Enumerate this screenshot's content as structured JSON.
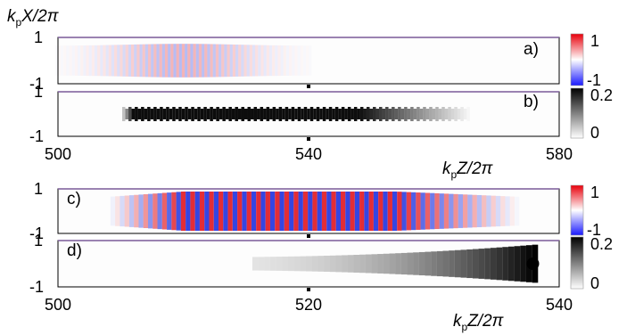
{
  "figure": {
    "ylabel": {
      "base": "k",
      "sub": "p",
      "tail": "X/2π"
    },
    "xlabel": {
      "base": "k",
      "sub": "p",
      "tail": "Z/2π"
    }
  },
  "chart_data": [
    {
      "type": "heatmap",
      "panel_label": "a)",
      "quantity": "oscillating field",
      "xlim": [
        500,
        580
      ],
      "ylim": [
        -1,
        1
      ],
      "yticks": [
        "1",
        "-1"
      ],
      "xticks": [],
      "colormap": "blue-white-red",
      "colorbar_ticks": [
        "1",
        "-1"
      ],
      "colorbar_range": [
        -1,
        1
      ],
      "envelope": {
        "center": 520,
        "half_width": 12,
        "amplitude": 0.35,
        "period": 0.9
      },
      "marker_x": 540
    },
    {
      "type": "heatmap",
      "panel_label": "b)",
      "quantity": "intensity",
      "xlim": [
        500,
        580
      ],
      "ylim": [
        -1,
        1
      ],
      "yticks": [
        "1",
        "-1"
      ],
      "xticks": [
        "500",
        "540",
        "580"
      ],
      "colormap": "white-black",
      "colorbar_ticks": [
        "0.2",
        "0"
      ],
      "colorbar_range": [
        0,
        0.2
      ],
      "envelope": {
        "start": 510,
        "peak_start": 512,
        "peak_end": 548,
        "end": 566,
        "period": 1.0
      },
      "marker_x": 540
    },
    {
      "type": "heatmap",
      "panel_label": "c)",
      "quantity": "oscillating field",
      "xlim": [
        500,
        540
      ],
      "ylim": [
        -1,
        1
      ],
      "yticks": [
        "1",
        "-1"
      ],
      "xticks": [],
      "colormap": "blue-white-red",
      "colorbar_ticks": [
        "1",
        "-1"
      ],
      "colorbar_range": [
        -1,
        1
      ],
      "envelope": {
        "start": 504,
        "peak_start": 510,
        "peak_end": 527,
        "end": 537,
        "period": 0.75
      },
      "marker_x": 520
    },
    {
      "type": "heatmap",
      "panel_label": "d)",
      "quantity": "intensity",
      "xlim": [
        500,
        540
      ],
      "ylim": [
        -1,
        1
      ],
      "yticks": [
        "1",
        "-1"
      ],
      "xticks": [
        "500",
        "520",
        "540"
      ],
      "colormap": "white-black",
      "colorbar_ticks": [
        "0.2",
        "0"
      ],
      "colorbar_range": [
        0,
        0.2
      ],
      "envelope": {
        "start": 511,
        "end": 538.5,
        "period": 0.95
      },
      "marker_x": 520
    }
  ]
}
